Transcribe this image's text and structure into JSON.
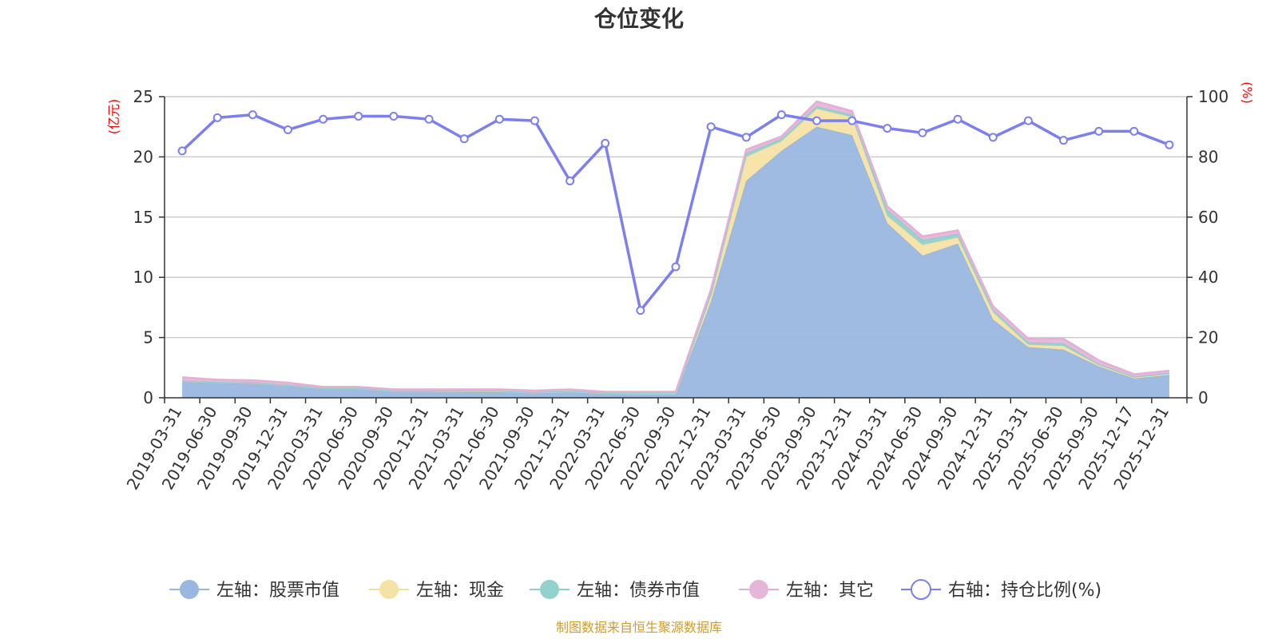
{
  "chart_data": {
    "type": "area",
    "title": "仓位变化",
    "left_axis_unit": "(亿元)",
    "right_axis_unit": "(%)",
    "ylim_left": [
      0,
      25
    ],
    "ylim_right": [
      0,
      100
    ],
    "left_ticks": [
      "0",
      "5",
      "10",
      "15",
      "20",
      "25"
    ],
    "right_ticks": [
      "0",
      "20",
      "40",
      "60",
      "80",
      "100"
    ],
    "grid": true,
    "legend_position": "bottom",
    "x": [
      "2019-03-31",
      "2019-06-30",
      "2019-09-30",
      "2019-12-31",
      "2020-03-31",
      "2020-06-30",
      "2020-09-30",
      "2020-12-31",
      "2021-03-31",
      "2021-06-30",
      "2021-09-30",
      "2021-12-31",
      "2022-03-31",
      "2022-06-30",
      "2022-09-30",
      "2022-12-31",
      "2023-03-31",
      "2023-06-30",
      "2023-09-30",
      "2023-12-31",
      "2024-03-31",
      "2024-06-30",
      "2024-09-30",
      "2024-12-31",
      "2025-03-31",
      "2025-06-30",
      "2025-09-30",
      "2025-12-17",
      "2025-12-31"
    ],
    "series": [
      {
        "name": "左轴：股票市值",
        "axis": "left",
        "stacked": true,
        "color": "#9ab7e0",
        "line_color": "#9ab7e0",
        "values": [
          1.35,
          1.25,
          1.2,
          1.0,
          0.75,
          0.75,
          0.55,
          0.55,
          0.5,
          0.5,
          0.4,
          0.5,
          0.35,
          0.3,
          0.3,
          8.0,
          18.0,
          20.5,
          22.5,
          21.8,
          14.5,
          11.8,
          12.8,
          6.5,
          4.2,
          4.0,
          2.6,
          1.6,
          1.9
        ]
      },
      {
        "name": "左轴：现金",
        "axis": "left",
        "stacked": true,
        "color": "#f5e3a5",
        "line_color": "#f3df9e",
        "values": [
          0.05,
          0.05,
          0.05,
          0.05,
          0.05,
          0.05,
          0.05,
          0.05,
          0.05,
          0.05,
          0.05,
          0.05,
          0.05,
          0.1,
          0.1,
          0.6,
          2.0,
          0.8,
          1.5,
          1.5,
          0.6,
          0.9,
          0.5,
          0.6,
          0.2,
          0.3,
          0.1,
          0.1,
          0.1
        ]
      },
      {
        "name": "左轴：债券市值",
        "axis": "left",
        "stacked": true,
        "color": "#93d1cc",
        "line_color": "#8ad0cc",
        "values": [
          0.02,
          0.02,
          0.02,
          0.02,
          0.02,
          0.02,
          0.02,
          0.02,
          0.02,
          0.02,
          0.02,
          0.02,
          0.02,
          0.02,
          0.02,
          0.1,
          0.3,
          0.2,
          0.2,
          0.2,
          0.5,
          0.4,
          0.3,
          0.2,
          0.2,
          0.2,
          0.1,
          0.05,
          0.05
        ]
      },
      {
        "name": "左轴：其它",
        "axis": "left",
        "stacked": true,
        "color": "#e6b6d9",
        "line_color": "#e4afd6",
        "values": [
          0.28,
          0.18,
          0.18,
          0.18,
          0.08,
          0.08,
          0.08,
          0.08,
          0.13,
          0.13,
          0.13,
          0.13,
          0.08,
          0.08,
          0.08,
          0.3,
          0.3,
          0.2,
          0.4,
          0.3,
          0.3,
          0.3,
          0.3,
          0.3,
          0.3,
          0.4,
          0.3,
          0.2,
          0.2
        ]
      },
      {
        "name": "右轴：持仓比例(%)",
        "axis": "right",
        "type": "line",
        "color": "#7b7ff0",
        "values": [
          82,
          93,
          94,
          89,
          92.5,
          93.5,
          93.5,
          92.5,
          86,
          92.5,
          92,
          72,
          84.5,
          29,
          43.5,
          90,
          86.5,
          94,
          92,
          92,
          89.5,
          88,
          92.5,
          86.5,
          92,
          85.5,
          88.5,
          88.5,
          84
        ]
      }
    ]
  },
  "footer": {
    "source": "制图数据来自恒生聚源数据库"
  }
}
